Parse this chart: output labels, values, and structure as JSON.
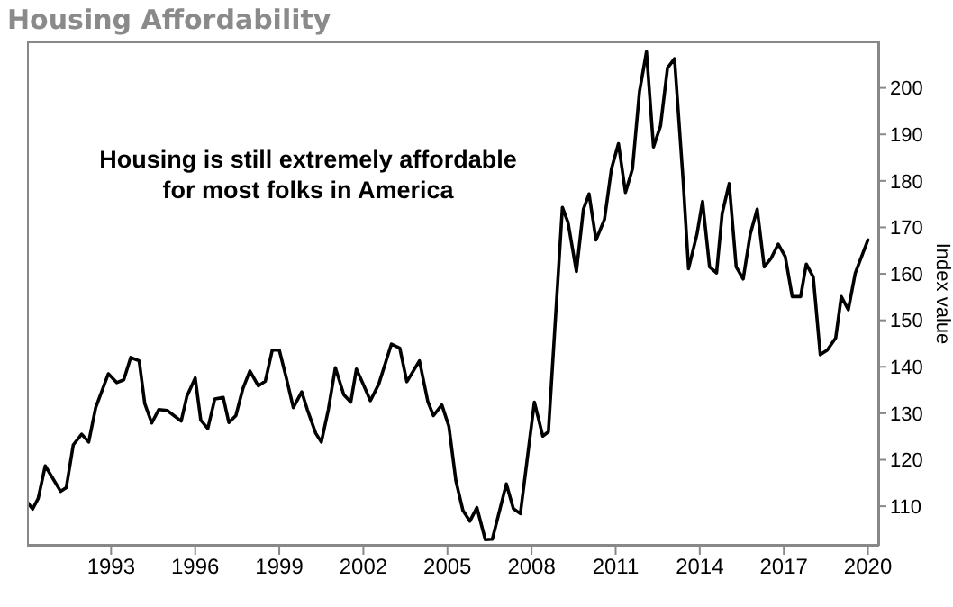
{
  "chart_data": {
    "type": "line",
    "title": "Housing Affordability",
    "ylabel": "Index value",
    "annotations": [
      "Housing is still extremely affordable for most folks in America"
    ],
    "xlim": [
      1990,
      2020.4
    ],
    "xticks": [
      1993,
      1996,
      1999,
      2002,
      2005,
      2008,
      2011,
      2014,
      2017,
      2020
    ],
    "ylim": [
      101.5,
      210
    ],
    "yticks": [
      110,
      120,
      130,
      140,
      150,
      160,
      170,
      180,
      190,
      200
    ],
    "grid": false,
    "marker": "none",
    "line_style": "solid",
    "x": [
      1990,
      1990.2,
      1990.4,
      1990.65,
      1991.2,
      1991.4,
      1991.65,
      1991.95,
      1992.2,
      1992.45,
      1992.9,
      1993.2,
      1993.45,
      1993.7,
      1994,
      1994.2,
      1994.45,
      1994.7,
      1995,
      1995.5,
      1995.7,
      1996,
      1996.2,
      1996.45,
      1996.7,
      1997,
      1997.2,
      1997.45,
      1997.7,
      1997.95,
      1998.25,
      1998.5,
      1998.75,
      1999,
      1999.25,
      1999.5,
      1999.8,
      2000,
      2000.3,
      2000.5,
      2000.75,
      2001,
      2001.3,
      2001.55,
      2001.75,
      2002,
      2002.25,
      2002.55,
      2003,
      2003.3,
      2003.55,
      2004,
      2004.3,
      2004.5,
      2004.8,
      2005.05,
      2005.3,
      2005.55,
      2005.8,
      2006.05,
      2006.35,
      2006.6,
      2007.1,
      2007.35,
      2007.6,
      2008.1,
      2008.4,
      2008.6,
      2009.1,
      2009.3,
      2009.6,
      2009.85,
      2010.05,
      2010.3,
      2010.6,
      2010.85,
      2011.1,
      2011.35,
      2011.6,
      2011.85,
      2012.1,
      2012.35,
      2012.6,
      2012.85,
      2013.1,
      2013.4,
      2013.6,
      2013.9,
      2014.1,
      2014.35,
      2014.6,
      2014.8,
      2015.05,
      2015.3,
      2015.55,
      2015.8,
      2016.05,
      2016.3,
      2016.55,
      2016.8,
      2017.05,
      2017.3,
      2017.6,
      2017.8,
      2018.05,
      2018.3,
      2018.55,
      2018.85,
      2019.05,
      2019.3,
      2019.55,
      2020
    ],
    "series": [
      {
        "color": "#000000",
        "values": [
          111,
          109.4,
          111.7,
          118.7,
          113.2,
          114,
          123.2,
          125.5,
          123.8,
          131.2,
          138.5,
          136.6,
          137.2,
          142,
          141.3,
          132.1,
          127.9,
          130.8,
          130.6,
          128.3,
          133.6,
          137.6,
          128.5,
          126.7,
          133.1,
          133.4,
          128,
          129.5,
          135.3,
          139.1,
          135.9,
          136.9,
          143.6,
          143.6,
          137.6,
          131.2,
          134.6,
          130.8,
          125.7,
          123.8,
          130.8,
          139.8,
          134,
          132.4,
          139.5,
          136.2,
          132.7,
          136.3,
          144.9,
          144,
          136.8,
          141.3,
          132.5,
          129.5,
          131.8,
          127.2,
          115.5,
          109.1,
          106.8,
          109.7,
          102.8,
          102.9,
          114.8,
          109.5,
          108.4,
          132.4,
          125.1,
          126,
          174.3,
          171.1,
          160.5,
          173.9,
          177.2,
          167.3,
          171.7,
          182.6,
          188,
          177.5,
          182.6,
          199.2,
          207.8,
          187.3,
          191.8,
          204.3,
          206.3,
          180.7,
          161.1,
          168.5,
          175.6,
          161.5,
          160.2,
          173,
          179.4,
          161.5,
          158.9,
          168.5,
          173.9,
          161.5,
          163.4,
          166.4,
          163.7,
          155.1,
          155.1,
          162.1,
          159.3,
          142.6,
          143.6,
          146.2,
          155.1,
          152.3,
          160.2,
          167.3
        ]
      }
    ]
  }
}
